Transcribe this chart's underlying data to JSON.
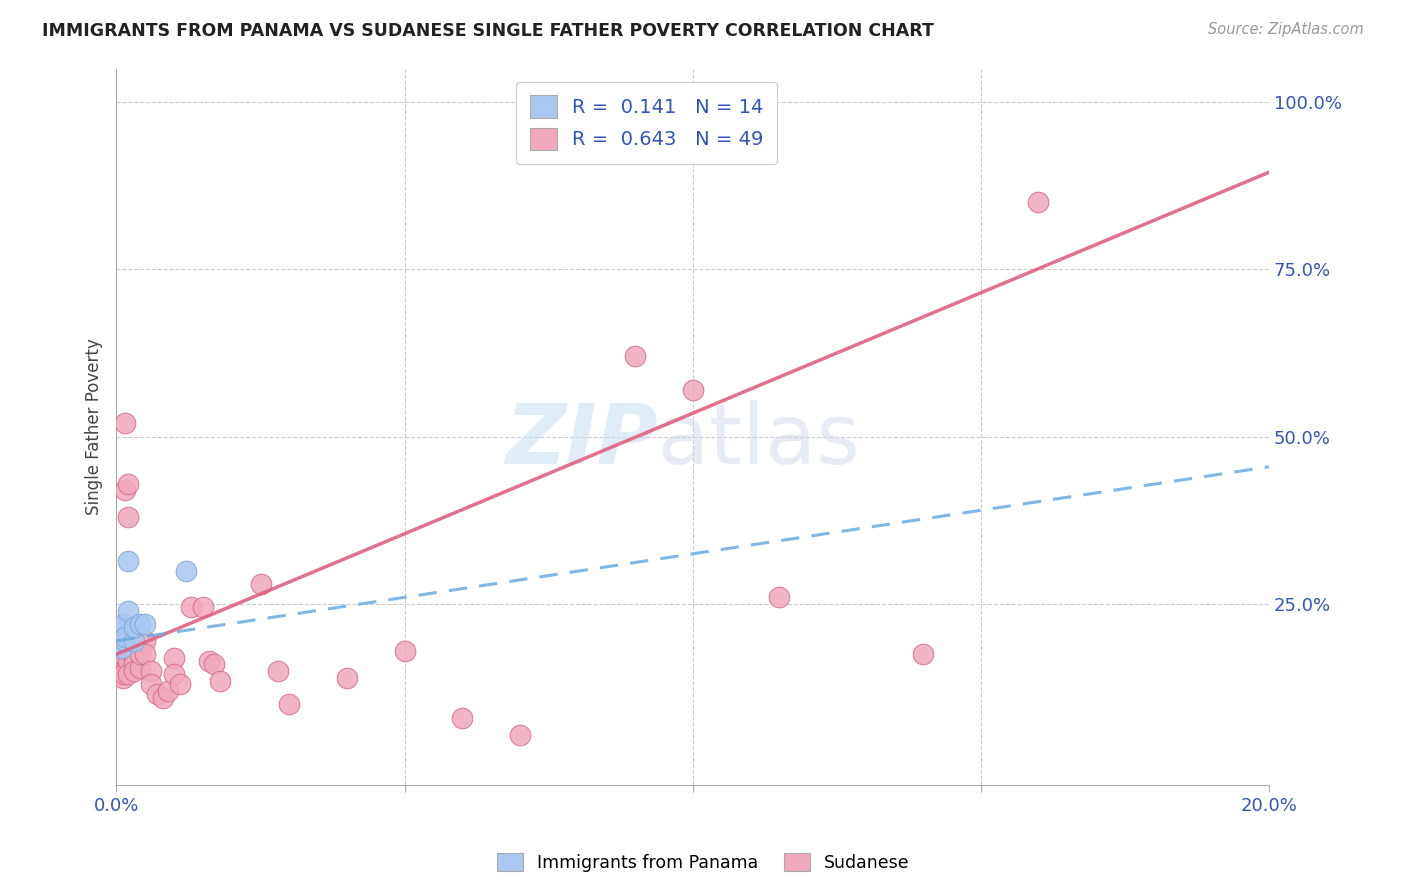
{
  "title": "IMMIGRANTS FROM PANAMA VS SUDANESE SINGLE FATHER POVERTY CORRELATION CHART",
  "source": "Source: ZipAtlas.com",
  "legend_label1": "Immigrants from Panama",
  "legend_label2": "Sudanese",
  "ylabel": "Single Father Poverty",
  "r1": "0.141",
  "n1": "14",
  "r2": "0.643",
  "n2": "49",
  "blue_color": "#a8c8f0",
  "pink_color": "#f0a8bc",
  "blue_line_color": "#6aabe0",
  "pink_line_color": "#e06080",
  "blue_edge_color": "#80a8d8",
  "pink_edge_color": "#d87090",
  "panama_x": [
    0.0005,
    0.0008,
    0.001,
    0.001,
    0.0012,
    0.0015,
    0.0015,
    0.002,
    0.002,
    0.003,
    0.003,
    0.004,
    0.005,
    0.012
  ],
  "panama_y": [
    0.195,
    0.2,
    0.185,
    0.215,
    0.22,
    0.195,
    0.2,
    0.315,
    0.24,
    0.195,
    0.215,
    0.22,
    0.22,
    0.3
  ],
  "sudanese_x": [
    0.0003,
    0.0005,
    0.0005,
    0.0007,
    0.0007,
    0.0008,
    0.001,
    0.001,
    0.001,
    0.0012,
    0.0013,
    0.0015,
    0.0015,
    0.002,
    0.002,
    0.002,
    0.002,
    0.003,
    0.003,
    0.003,
    0.004,
    0.004,
    0.005,
    0.005,
    0.006,
    0.006,
    0.007,
    0.008,
    0.009,
    0.01,
    0.01,
    0.011,
    0.013,
    0.015,
    0.016,
    0.017,
    0.018,
    0.025,
    0.028,
    0.03,
    0.04,
    0.05,
    0.06,
    0.07,
    0.09,
    0.1,
    0.115,
    0.14,
    0.16
  ],
  "sudanese_y": [
    0.185,
    0.175,
    0.195,
    0.165,
    0.155,
    0.145,
    0.195,
    0.185,
    0.175,
    0.14,
    0.145,
    0.42,
    0.52,
    0.38,
    0.43,
    0.165,
    0.145,
    0.17,
    0.16,
    0.15,
    0.155,
    0.175,
    0.195,
    0.175,
    0.15,
    0.13,
    0.115,
    0.11,
    0.12,
    0.17,
    0.145,
    0.13,
    0.245,
    0.245,
    0.165,
    0.16,
    0.135,
    0.28,
    0.15,
    0.1,
    0.14,
    0.18,
    0.08,
    0.055,
    0.62,
    0.57,
    0.26,
    0.175,
    0.85
  ],
  "xlim": [
    0.0,
    0.2
  ],
  "ylim": [
    -0.02,
    1.05
  ],
  "pink_line_x0": 0.0,
  "pink_line_y0": 0.175,
  "pink_line_x1": 0.2,
  "pink_line_y1": 0.895,
  "blue_line_x0": 0.0,
  "blue_line_y0": 0.195,
  "blue_line_x1": 0.2,
  "blue_line_y1": 0.455
}
